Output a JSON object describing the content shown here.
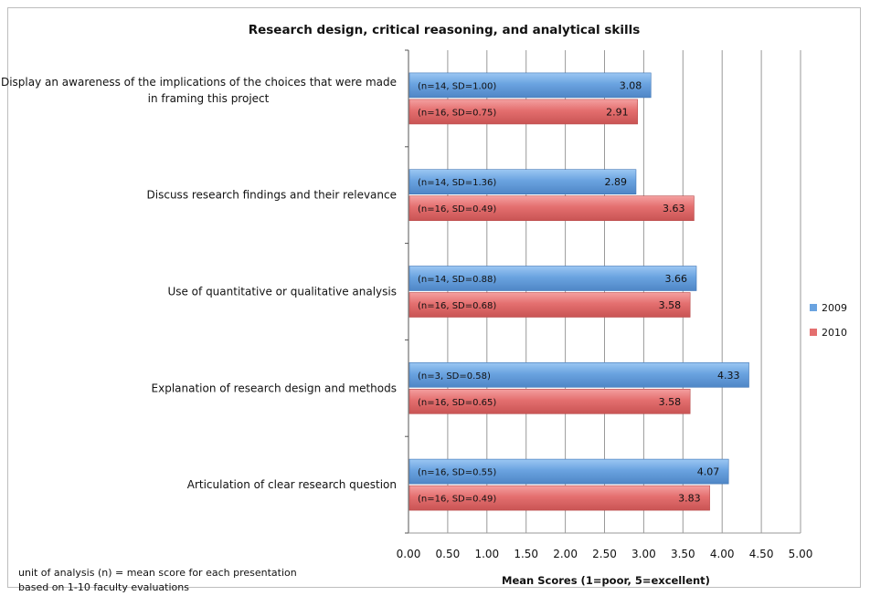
{
  "chart_data": {
    "type": "bar",
    "orientation": "horizontal",
    "title": "Research design, critical reasoning, and analytical skills",
    "xlabel": "Mean Scores (1=poor, 5=excellent)",
    "xlim": [
      0,
      5
    ],
    "xticks": [
      "0.00",
      "0.50",
      "1.00",
      "1.50",
      "2.00",
      "2.50",
      "3.00",
      "3.50",
      "4.00",
      "4.50",
      "5.00"
    ],
    "categories": [
      [
        "Display an awareness of the implications of the choices that were made",
        "in framing this project"
      ],
      [
        "Discuss research findings and their relevance"
      ],
      [
        "Use of quantitative or qualitative analysis"
      ],
      [
        "Explanation of research design and methods"
      ],
      [
        "Articulation of clear research question"
      ]
    ],
    "series": [
      {
        "name": "2009",
        "color": "#6aa3e0",
        "values": [
          3.08,
          2.89,
          3.66,
          4.33,
          4.07
        ],
        "value_labels": [
          "3.08",
          "2.89",
          "3.66",
          "4.33",
          "4.07"
        ],
        "stats": [
          "(n=14, SD=1.00)",
          "(n=14, SD=1.36)",
          "(n=14, SD=0.88)",
          "(n=3, SD=0.58)",
          "(n=16, SD=0.55)"
        ]
      },
      {
        "name": "2010",
        "color": "#e46f6f",
        "values": [
          2.91,
          3.63,
          3.58,
          3.58,
          3.83
        ],
        "value_labels": [
          "2.91",
          "3.63",
          "3.58",
          "3.58",
          "3.83"
        ],
        "stats": [
          "(n=16, SD=0.75)",
          "(n=16, SD=0.49)",
          "(n=16, SD=0.68)",
          "(n=16, SD=0.65)",
          "(n=16, SD=0.49)"
        ]
      }
    ],
    "grid": true,
    "legend": "right",
    "note": [
      "unit of analysis (n) = mean score for each presentation",
      "based on 1-10 faculty evaluations"
    ]
  }
}
